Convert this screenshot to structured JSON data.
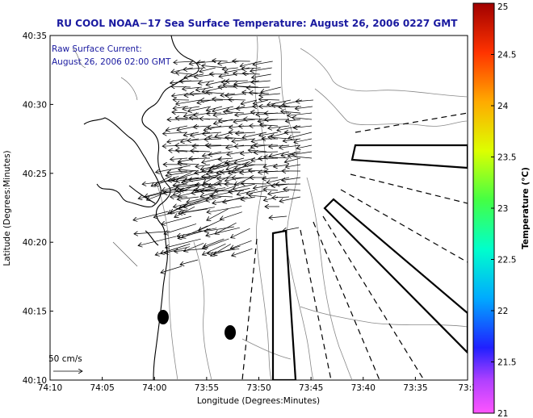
{
  "title": "RU COOL  NOAA−17  Sea Surface Temperature:  August 26, 2006 0227 GMT",
  "annotation": {
    "line1": "Raw Surface Current:",
    "line2": "August 26, 2006 02:00 GMT"
  },
  "scale": {
    "label": "50 cm/s"
  },
  "axes": {
    "xlabel": "Longitude (Degrees:Minutes)",
    "ylabel": "Latitude (Degrees:Minutes)",
    "xticks": [
      "74:10",
      "74:05",
      "74:00",
      "73:55",
      "73:50",
      "73:45",
      "73:40",
      "73:35",
      "73:3"
    ],
    "yticks": [
      "40:35",
      "40:30",
      "40:25",
      "40:20",
      "40:15",
      "40:10"
    ]
  },
  "colorbar": {
    "label": "Temperature (°C)",
    "ticks": [
      "25",
      "24.5",
      "24",
      "23.5",
      "23",
      "22.5",
      "22",
      "21.5",
      "21"
    ],
    "range": [
      21,
      25
    ]
  },
  "colors": {
    "title": "#1a1aa0",
    "annotation": "#1a1aa0",
    "contour": "#888888",
    "coast": "#000000"
  }
}
